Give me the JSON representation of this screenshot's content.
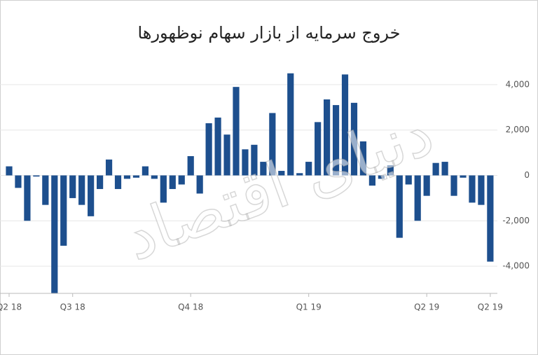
{
  "chart_data": {
    "type": "bar",
    "title": "خروج سرمایه از بازار سهام نوظهورها",
    "watermark": "دنیای اقتصاد",
    "categories": [
      "Q2 18",
      null,
      null,
      null,
      null,
      null,
      null,
      "Q3 18",
      null,
      null,
      null,
      null,
      null,
      null,
      null,
      null,
      null,
      null,
      null,
      null,
      "Q4 18",
      null,
      null,
      null,
      null,
      null,
      null,
      null,
      null,
      null,
      null,
      null,
      null,
      "Q1 19",
      null,
      null,
      null,
      null,
      null,
      null,
      null,
      null,
      null,
      null,
      null,
      null,
      "Q2 19",
      null,
      null,
      null,
      null,
      null,
      null,
      "Q2 19"
    ],
    "values": [
      400,
      -550,
      -2000,
      -50,
      -1300,
      -5200,
      -3100,
      -1000,
      -1300,
      -1800,
      -600,
      700,
      -600,
      -150,
      -100,
      400,
      -150,
      -1200,
      -600,
      -400,
      850,
      -800,
      2300,
      2550,
      1800,
      3900,
      1150,
      1350,
      600,
      2750,
      200,
      4500,
      100,
      600,
      2350,
      3350,
      3100,
      4450,
      3200,
      1500,
      -450,
      -150,
      450,
      -2750,
      -400,
      -2000,
      -900,
      550,
      600,
      -900,
      -100,
      -1200,
      -1300,
      -3800
    ],
    "color": "#1d4f8e",
    "ylim": [
      -5200,
      4800
    ],
    "yticks": [
      {
        "value": 4000,
        "label": "4,000"
      },
      {
        "value": 2000,
        "label": "2,000"
      },
      0,
      {
        "value": -2000,
        "label": "-2,000"
      },
      {
        "value": -4000,
        "label": "-4,000"
      }
    ],
    "grid": true
  }
}
